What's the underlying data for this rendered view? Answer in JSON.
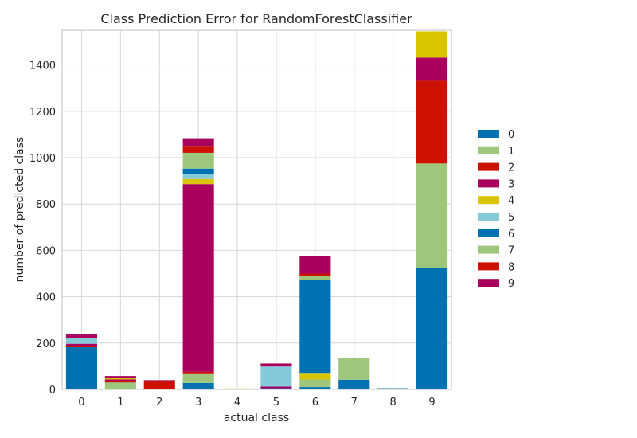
{
  "chart_data": {
    "type": "bar",
    "stacked": true,
    "title": "Class Prediction Error for RandomForestClassifier",
    "xlabel": "actual class",
    "ylabel": "number of predicted class",
    "categories": [
      "0",
      "1",
      "2",
      "3",
      "4",
      "5",
      "6",
      "7",
      "8",
      "9"
    ],
    "ylim": [
      0,
      1550
    ],
    "yticks": [
      0,
      200,
      400,
      600,
      800,
      1000,
      1200,
      1400
    ],
    "grid": true,
    "legend_position": "right",
    "series": [
      {
        "name": "0",
        "color": "#0072b2",
        "values": [
          182,
          0,
          0,
          28,
          0,
          5,
          10,
          42,
          5,
          525
        ]
      },
      {
        "name": "1",
        "color": "#9ec77d",
        "values": [
          0,
          30,
          0,
          38,
          0,
          0,
          33,
          0,
          0,
          450
        ]
      },
      {
        "name": "2",
        "color": "#cc1100",
        "values": [
          5,
          8,
          35,
          10,
          0,
          0,
          0,
          0,
          0,
          357
        ]
      },
      {
        "name": "3",
        "color": "#a8005c",
        "values": [
          10,
          5,
          5,
          810,
          0,
          7,
          0,
          0,
          0,
          100
        ]
      },
      {
        "name": "4",
        "color": "#d8c400",
        "values": [
          0,
          5,
          0,
          22,
          4,
          0,
          25,
          0,
          0,
          113
        ]
      },
      {
        "name": "5",
        "color": "#86c9d8",
        "values": [
          25,
          0,
          0,
          20,
          0,
          87,
          0,
          0,
          0,
          0
        ]
      },
      {
        "name": "6",
        "color": "#0072b2",
        "values": [
          0,
          0,
          0,
          25,
          0,
          0,
          405,
          0,
          0,
          0
        ]
      },
      {
        "name": "7",
        "color": "#9ec77d",
        "values": [
          0,
          0,
          0,
          68,
          0,
          0,
          15,
          93,
          0,
          0
        ]
      },
      {
        "name": "8",
        "color": "#cc1100",
        "values": [
          0,
          0,
          0,
          30,
          0,
          0,
          12,
          0,
          0,
          0
        ]
      },
      {
        "name": "9",
        "color": "#a8005c",
        "values": [
          15,
          10,
          0,
          33,
          0,
          13,
          75,
          0,
          0,
          0
        ]
      }
    ]
  }
}
